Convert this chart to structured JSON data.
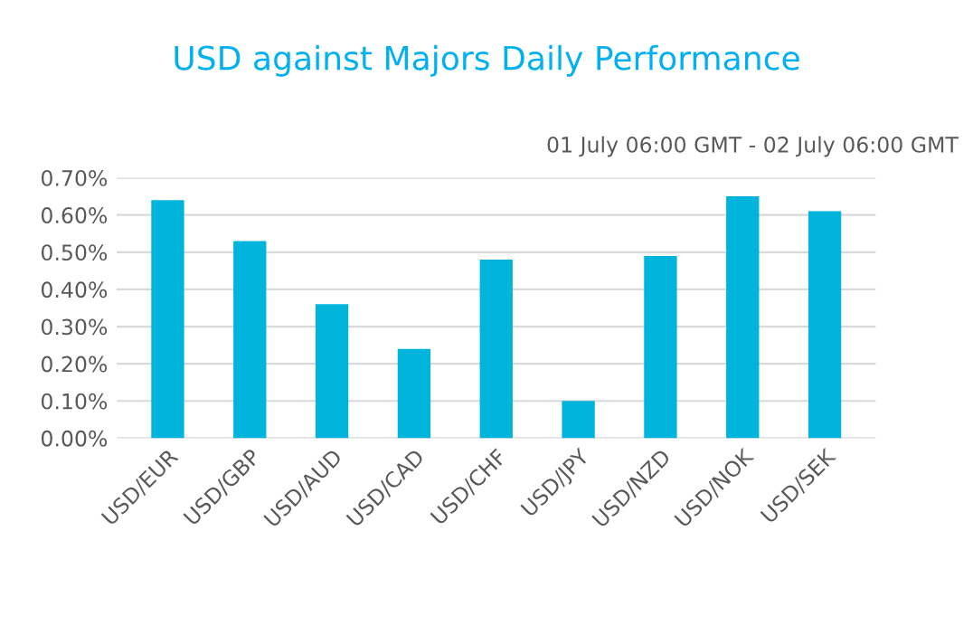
{
  "chart_data": {
    "type": "bar",
    "title": "USD against Majors Daily Performance",
    "annotations": [
      "01 July 06:00 GMT - 02 July 06:00 GMT"
    ],
    "categories": [
      "USD/EUR",
      "USD/GBP",
      "USD/AUD",
      "USD/CAD",
      "USD/CHF",
      "USD/JPY",
      "USD/NZD",
      "USD/NOK",
      "USD/SEK"
    ],
    "values": [
      0.64,
      0.53,
      0.36,
      0.24,
      0.48,
      0.1,
      0.49,
      0.65,
      0.61
    ],
    "color": "#00b4dc",
    "ylim": [
      0,
      0.7
    ],
    "yticks": [
      {
        "value": 0,
        "label": "0.00%"
      },
      {
        "value": 0.1,
        "label": "0.10%"
      },
      {
        "value": 0.2,
        "label": "0.20%"
      },
      {
        "value": 0.3,
        "label": "0.30%"
      },
      {
        "value": 0.4,
        "label": "0.40%"
      },
      {
        "value": 0.5,
        "label": "0.50%"
      },
      {
        "value": 0.6,
        "label": "0.60%"
      },
      {
        "value": 0.7,
        "label": "0.70%"
      }
    ],
    "grid": "y",
    "legend": false
  }
}
